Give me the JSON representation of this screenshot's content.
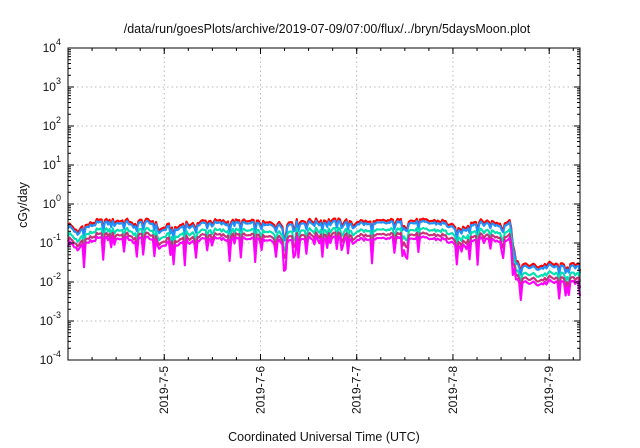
{
  "chart_data": {
    "type": "line",
    "title": "/data/run/goesPlots/archive/2019-07-09/07:00/flux/../bryn/5daysMoon.plot",
    "xlabel": "Coordinated Universal Time (UTC)",
    "ylabel": "cGy/day",
    "yscale": "log",
    "ylim": [
      0.0001,
      10000
    ],
    "ytick_exponents": [
      -4,
      -3,
      -2,
      -1,
      0,
      1,
      2,
      3,
      4
    ],
    "ytick_base": "10",
    "xlim": [
      4.0,
      9.32
    ],
    "x_unit": "days of July 2019 (UTC)",
    "xticks": [
      {
        "x": 5,
        "label": "2019-7-5"
      },
      {
        "x": 6,
        "label": "2019-7-6"
      },
      {
        "x": 7,
        "label": "2019-7-7"
      },
      {
        "x": 8,
        "label": "2019-7-8"
      },
      {
        "x": 9,
        "label": "2019-7-9"
      }
    ],
    "grid": true,
    "legend": "none",
    "profile": {
      "x": [
        4.0,
        4.06,
        4.1,
        4.14,
        4.2,
        4.3,
        4.5,
        4.65,
        4.68,
        4.72,
        4.8,
        4.9,
        4.95,
        5.0,
        5.05,
        5.1,
        5.15,
        5.22,
        5.28,
        5.4,
        5.55,
        5.65,
        5.75,
        5.95,
        6.05,
        6.15,
        6.22,
        6.25,
        6.3,
        6.5,
        6.7,
        6.9,
        6.97,
        7.0,
        7.05,
        7.15,
        7.3,
        7.5,
        7.7,
        7.9,
        7.98,
        8.05,
        8.12,
        8.2,
        8.35,
        8.45,
        8.5,
        8.55,
        8.6,
        8.62,
        8.65,
        8.7,
        8.8,
        8.9,
        9.0,
        9.1,
        9.2,
        9.32
      ],
      "log_level": [
        -0.62,
        -0.72,
        -0.88,
        -0.7,
        -0.66,
        -0.56,
        -0.55,
        -0.55,
        -0.72,
        -0.56,
        -0.55,
        -0.56,
        -0.8,
        -0.72,
        -0.67,
        -0.79,
        -0.7,
        -0.58,
        -0.68,
        -0.56,
        -0.56,
        -0.58,
        -0.56,
        -0.58,
        -0.62,
        -0.6,
        -0.64,
        -0.78,
        -0.57,
        -0.55,
        -0.54,
        -0.55,
        -0.68,
        -0.55,
        -0.56,
        -0.6,
        -0.55,
        -0.55,
        -0.55,
        -0.56,
        -0.66,
        -0.8,
        -0.71,
        -0.58,
        -0.56,
        -0.6,
        -0.62,
        -0.58,
        -0.56,
        -0.9,
        -1.6,
        -1.7,
        -1.68,
        -1.72,
        -1.65,
        -1.7,
        -1.68,
        -1.7
      ]
    },
    "series": [
      {
        "color": "#ff0000",
        "offset_decades": 0.12,
        "drop_scale": 1.0
      },
      {
        "color": "#1e90ff",
        "offset_decades": 0.06,
        "drop_scale": 1.0
      },
      {
        "color": "#00e0b0",
        "offset_decades": -0.12,
        "drop_scale": 1.4
      },
      {
        "color": "#c8307a",
        "offset_decades": -0.24,
        "drop_scale": 1.8
      },
      {
        "color": "#ff00ff",
        "offset_decades": -0.34,
        "drop_scale": 3.0
      }
    ]
  }
}
